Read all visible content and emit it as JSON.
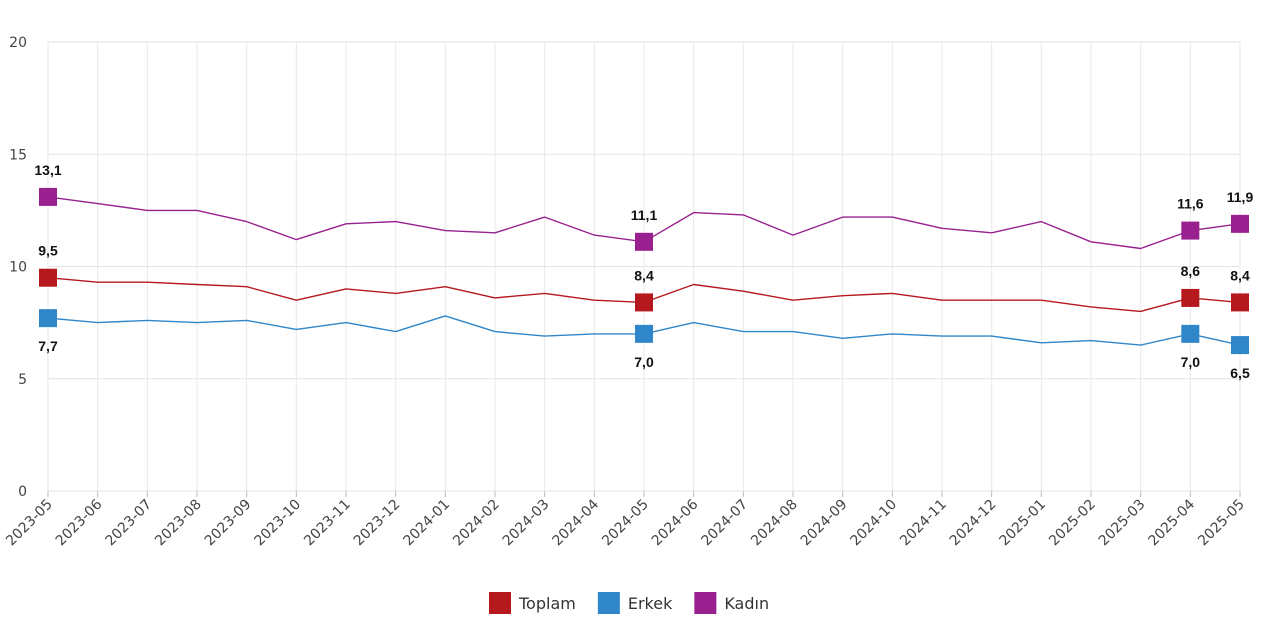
{
  "chart_data": {
    "type": "line",
    "x": [
      "2023-05",
      "2023-06",
      "2023-07",
      "2023-08",
      "2023-09",
      "2023-10",
      "2023-11",
      "2023-12",
      "2024-01",
      "2024-02",
      "2024-03",
      "2024-04",
      "2024-05",
      "2024-06",
      "2024-07",
      "2024-08",
      "2024-09",
      "2024-10",
      "2024-11",
      "2024-12",
      "2025-01",
      "2025-02",
      "2025-03",
      "2025-04",
      "2025-05"
    ],
    "ylim": [
      0,
      20
    ],
    "yticks": [
      0,
      5,
      10,
      15,
      20
    ],
    "grid": true,
    "legend_position": "bottom-center",
    "series": [
      {
        "name": "Toplam",
        "color": "#b5191e",
        "values": [
          9.5,
          9.3,
          9.3,
          9.2,
          9.1,
          8.5,
          9.0,
          8.8,
          9.1,
          8.6,
          8.8,
          8.5,
          8.4,
          9.2,
          8.9,
          8.5,
          8.7,
          8.8,
          8.5,
          8.5,
          8.5,
          8.2,
          8.0,
          8.6,
          8.4
        ],
        "labels": [
          {
            "index": 0,
            "text": "9,5",
            "pos": "above"
          },
          {
            "index": 12,
            "text": "8,4",
            "pos": "above"
          },
          {
            "index": 23,
            "text": "8,6",
            "pos": "above"
          },
          {
            "index": 24,
            "text": "8,4",
            "pos": "above"
          }
        ]
      },
      {
        "name": "Erkek",
        "color": "#2f86c8",
        "values": [
          7.7,
          7.5,
          7.6,
          7.5,
          7.6,
          7.2,
          7.5,
          7.1,
          7.8,
          7.1,
          6.9,
          7.0,
          7.0,
          7.5,
          7.1,
          7.1,
          6.8,
          7.0,
          6.9,
          6.9,
          6.6,
          6.7,
          6.5,
          7.0,
          6.5
        ],
        "labels": [
          {
            "index": 0,
            "text": "7,7",
            "pos": "below"
          },
          {
            "index": 12,
            "text": "7,0",
            "pos": "below"
          },
          {
            "index": 23,
            "text": "7,0",
            "pos": "below"
          },
          {
            "index": 24,
            "text": "6,5",
            "pos": "below"
          }
        ]
      },
      {
        "name": "Kadın",
        "color": "#98218f",
        "values": [
          13.1,
          12.8,
          12.5,
          12.5,
          12.0,
          11.2,
          11.9,
          12.0,
          11.6,
          11.5,
          12.2,
          11.4,
          11.1,
          12.4,
          12.3,
          11.4,
          12.2,
          12.2,
          11.7,
          11.5,
          12.0,
          11.1,
          10.8,
          11.6,
          11.9
        ],
        "labels": [
          {
            "index": 0,
            "text": "13,1",
            "pos": "above"
          },
          {
            "index": 12,
            "text": "11,1",
            "pos": "above"
          },
          {
            "index": 23,
            "text": "11,6",
            "pos": "above"
          },
          {
            "index": 24,
            "text": "11,9",
            "pos": "above"
          }
        ]
      }
    ]
  }
}
